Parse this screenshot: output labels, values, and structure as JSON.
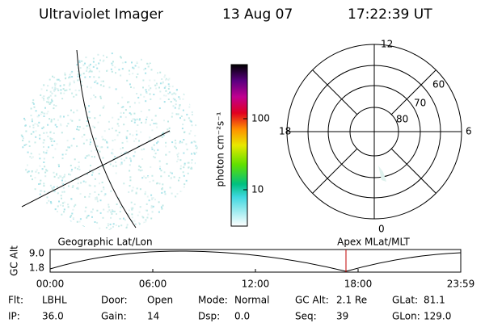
{
  "header": {
    "title": "Ultraviolet Imager",
    "date": "13 Aug 07",
    "time": "17:22:39 UT"
  },
  "colorbar": {
    "label": "photon cm⁻²s⁻¹",
    "ticks": [
      "100",
      "10"
    ]
  },
  "polar": {
    "mlt_labels": [
      "12",
      "18",
      "6",
      "0"
    ],
    "lat_labels": [
      "60",
      "70",
      "80"
    ]
  },
  "timeline": {
    "left_label": "Geographic Lat/Lon",
    "right_label": "Apex MLat/MLT",
    "axis_label": "GC Alt",
    "y_labels": [
      "9.0",
      "1.8"
    ],
    "x_labels": [
      "00:00",
      "06:00",
      "12:00",
      "18:00",
      "23:59"
    ]
  },
  "footer": [
    [
      {
        "label": "Flt:",
        "value": "LBHL"
      },
      {
        "label": "Door:",
        "value": "Open"
      },
      {
        "label": "Mode:",
        "value": "Normal"
      },
      {
        "label": "GC Alt:",
        "value": "2.1 Re"
      },
      {
        "label": "GLat:",
        "value": "81.1"
      }
    ],
    [
      {
        "label": "IP:",
        "value": "36.0"
      },
      {
        "label": "Gain:",
        "value": "14"
      },
      {
        "label": "Dsp:",
        "value": "0.0"
      },
      {
        "label": "Seq:",
        "value": "39"
      },
      {
        "label": "GLon:",
        "value": "129.0"
      }
    ]
  ]
}
